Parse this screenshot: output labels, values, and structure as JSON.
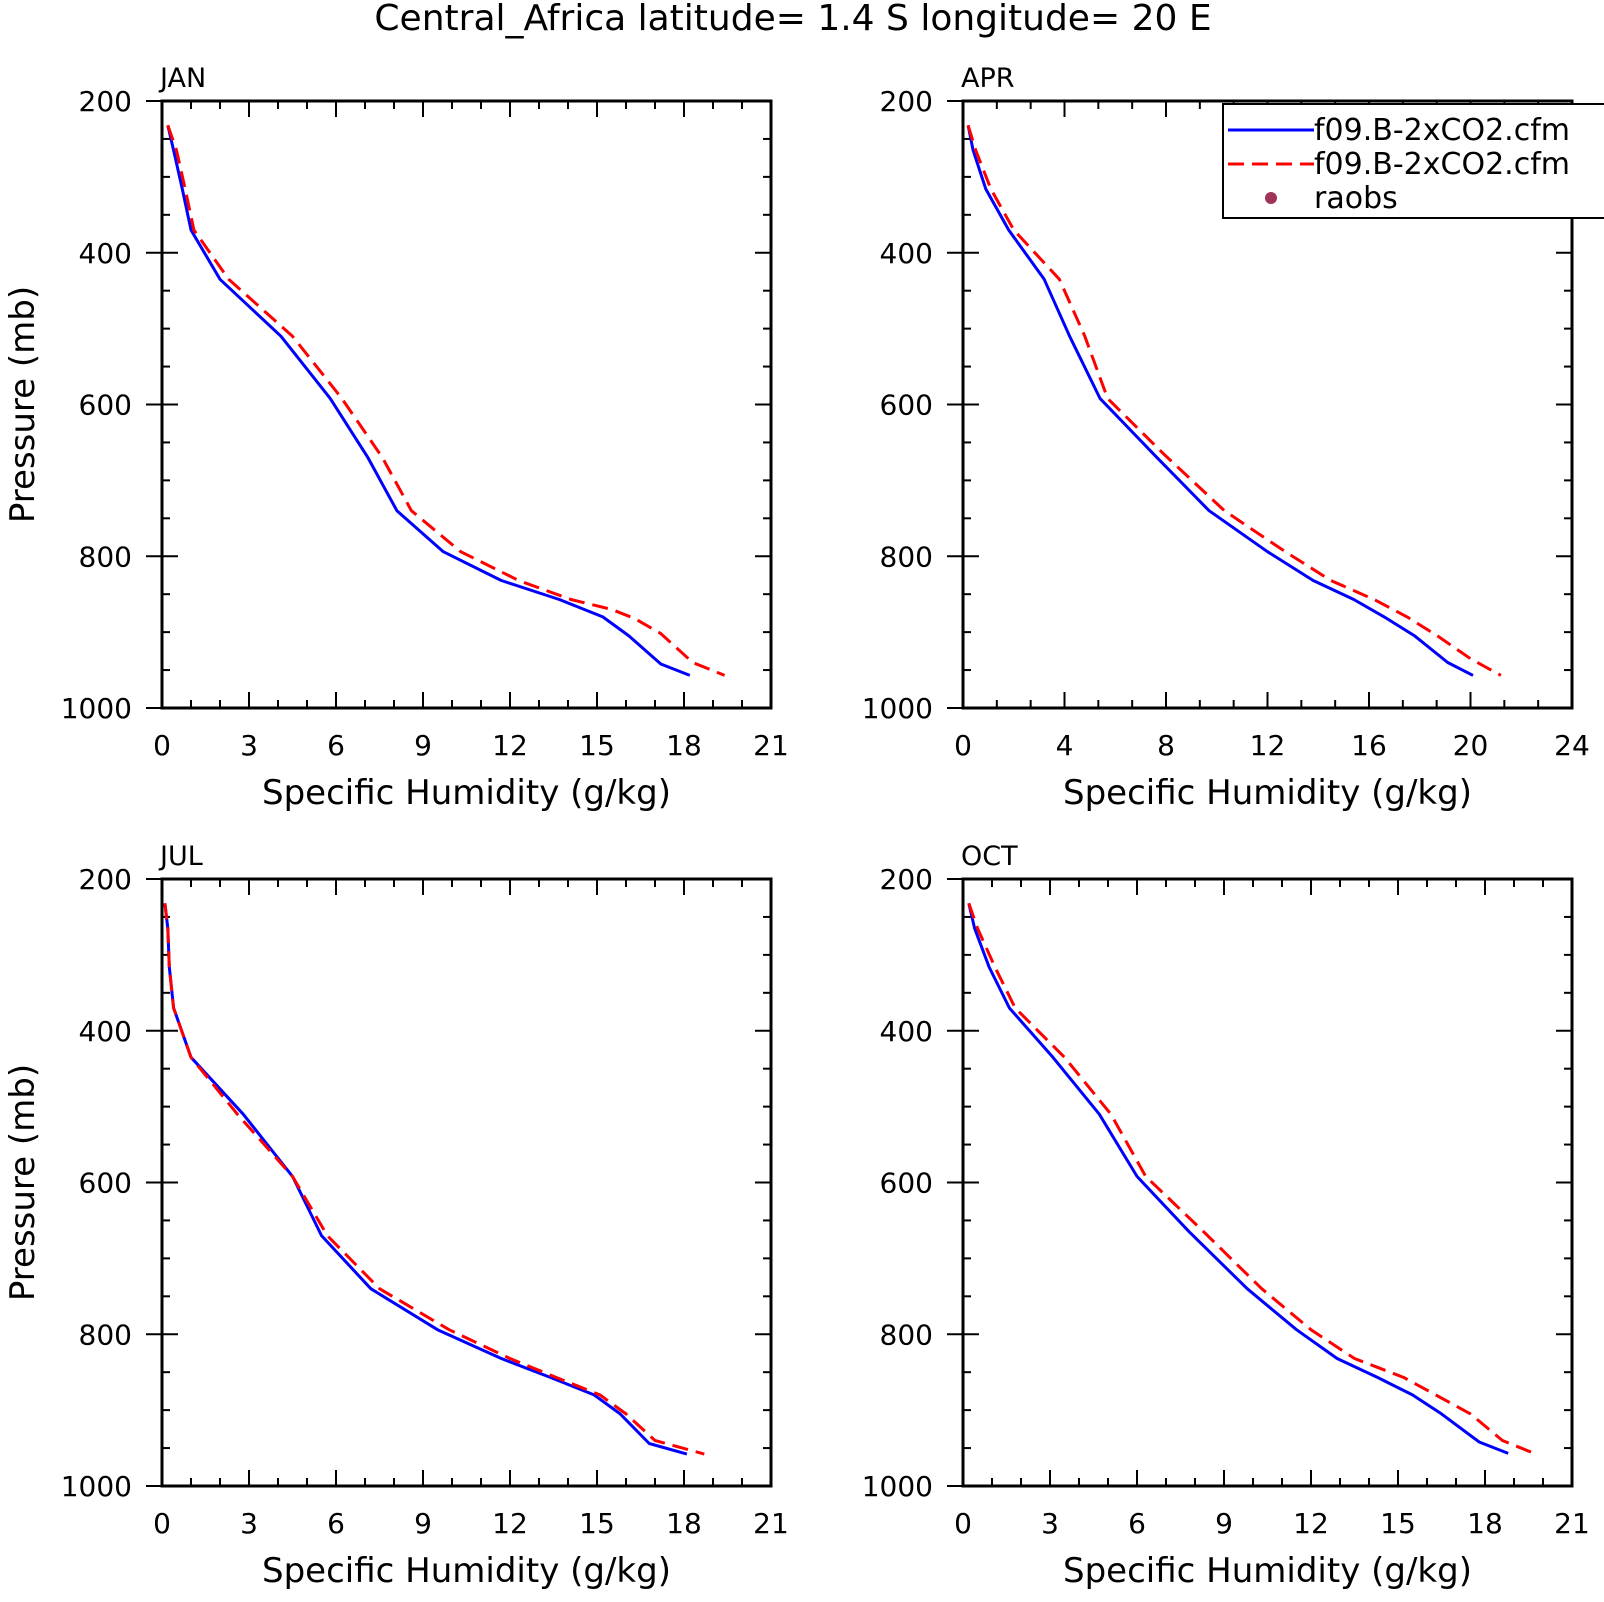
{
  "title": "Central_Africa  latitude= 1.4 S longitude= 20 E",
  "legend": {
    "entries": [
      {
        "label": "f09.B-2xCO2.cfm",
        "color": "#0000ff",
        "dash": "solid"
      },
      {
        "label": "f09.B-2xCO2.cfm",
        "color": "#ff0000",
        "dash": "dashed"
      },
      {
        "label": "raobs",
        "color": "#a0335a",
        "marker": "dot"
      }
    ]
  },
  "chart_data": [
    {
      "type": "line",
      "panel_label": "JAN",
      "xlabel": "Specific Humidity (g/kg)",
      "ylabel": "Pressure (mb)",
      "xlim": [
        0,
        21
      ],
      "ylim": [
        1000,
        200
      ],
      "xticks": [
        "0",
        "3",
        "6",
        "9",
        "12",
        "15",
        "18",
        "21"
      ],
      "yticks": [
        "200",
        "400",
        "600",
        "800",
        "1000"
      ],
      "series": [
        {
          "name": "f09.B-2xCO2.cfm",
          "color": "#0000ff",
          "dash": "solid",
          "points": [
            [
              0.2,
              232
            ],
            [
              0.4,
              265
            ],
            [
              0.7,
              316
            ],
            [
              1.0,
              370
            ],
            [
              2.0,
              435
            ],
            [
              4.1,
              510
            ],
            [
              5.8,
              592
            ],
            [
              7.1,
              670
            ],
            [
              8.1,
              740
            ],
            [
              9.7,
              794
            ],
            [
              11.7,
              832
            ],
            [
              13.7,
              857
            ],
            [
              15.2,
              880
            ],
            [
              16.1,
              905
            ],
            [
              17.2,
              942
            ],
            [
              18.2,
              957
            ]
          ]
        },
        {
          "name": "f09.B-2xCO2.cfm",
          "color": "#ff0000",
          "dash": "dashed",
          "points": [
            [
              0.2,
              232
            ],
            [
              0.5,
              265
            ],
            [
              0.8,
              316
            ],
            [
              1.1,
              370
            ],
            [
              2.3,
              435
            ],
            [
              4.5,
              510
            ],
            [
              6.2,
              592
            ],
            [
              7.6,
              670
            ],
            [
              8.6,
              740
            ],
            [
              10.3,
              794
            ],
            [
              12.3,
              832
            ],
            [
              14.1,
              857
            ],
            [
              15.5,
              870
            ],
            [
              16.3,
              882
            ],
            [
              17.2,
              902
            ],
            [
              18.3,
              940
            ],
            [
              19.4,
              957
            ]
          ]
        }
      ]
    },
    {
      "type": "line",
      "panel_label": "APR",
      "xlabel": "Specific Humidity (g/kg)",
      "ylabel": "",
      "xlim": [
        0,
        24
      ],
      "ylim": [
        1000,
        200
      ],
      "xticks": [
        "0",
        "4",
        "8",
        "12",
        "16",
        "20",
        "24"
      ],
      "yticks": [
        "200",
        "400",
        "600",
        "800",
        "1000"
      ],
      "series": [
        {
          "name": "f09.B-2xCO2.cfm",
          "color": "#0000ff",
          "dash": "solid",
          "points": [
            [
              0.2,
              232
            ],
            [
              0.4,
              265
            ],
            [
              0.9,
              316
            ],
            [
              1.8,
              370
            ],
            [
              3.2,
              435
            ],
            [
              4.2,
              510
            ],
            [
              5.4,
              592
            ],
            [
              7.5,
              665
            ],
            [
              9.7,
              740
            ],
            [
              12.0,
              794
            ],
            [
              13.8,
              832
            ],
            [
              15.4,
              857
            ],
            [
              16.6,
              880
            ],
            [
              17.8,
              905
            ],
            [
              19.1,
              940
            ],
            [
              20.1,
              957
            ]
          ]
        },
        {
          "name": "f09.B-2xCO2.cfm",
          "color": "#ff0000",
          "dash": "dashed",
          "points": [
            [
              0.2,
              232
            ],
            [
              0.5,
              265
            ],
            [
              1.1,
              316
            ],
            [
              2.0,
              370
            ],
            [
              3.8,
              435
            ],
            [
              4.8,
              510
            ],
            [
              5.7,
              592
            ],
            [
              7.9,
              665
            ],
            [
              10.3,
              740
            ],
            [
              12.7,
              794
            ],
            [
              14.5,
              832
            ],
            [
              16.2,
              857
            ],
            [
              17.5,
              880
            ],
            [
              18.7,
              905
            ],
            [
              20.0,
              935
            ],
            [
              21.2,
              957
            ]
          ]
        }
      ]
    },
    {
      "type": "line",
      "panel_label": "JUL",
      "xlabel": "Specific Humidity (g/kg)",
      "ylabel": "Pressure (mb)",
      "xlim": [
        0,
        21
      ],
      "ylim": [
        1000,
        200
      ],
      "xticks": [
        "0",
        "3",
        "6",
        "9",
        "12",
        "15",
        "18",
        "21"
      ],
      "yticks": [
        "200",
        "400",
        "600",
        "800",
        "1000"
      ],
      "series": [
        {
          "name": "f09.B-2xCO2.cfm",
          "color": "#0000ff",
          "dash": "solid",
          "points": [
            [
              0.1,
              232
            ],
            [
              0.2,
              265
            ],
            [
              0.25,
              316
            ],
            [
              0.4,
              370
            ],
            [
              1.0,
              435
            ],
            [
              2.8,
              510
            ],
            [
              4.5,
              592
            ],
            [
              5.5,
              670
            ],
            [
              7.2,
              740
            ],
            [
              9.5,
              794
            ],
            [
              11.7,
              832
            ],
            [
              13.4,
              857
            ],
            [
              14.9,
              880
            ],
            [
              15.8,
              905
            ],
            [
              16.8,
              944
            ],
            [
              18.1,
              958
            ]
          ]
        },
        {
          "name": "f09.B-2xCO2.cfm",
          "color": "#ff0000",
          "dash": "dashed",
          "points": [
            [
              0.1,
              232
            ],
            [
              0.2,
              265
            ],
            [
              0.25,
              316
            ],
            [
              0.4,
              370
            ],
            [
              1.0,
              435
            ],
            [
              2.6,
              510
            ],
            [
              4.5,
              592
            ],
            [
              5.7,
              670
            ],
            [
              7.5,
              740
            ],
            [
              9.9,
              794
            ],
            [
              12.0,
              832
            ],
            [
              13.6,
              857
            ],
            [
              15.1,
              880
            ],
            [
              16.0,
              905
            ],
            [
              17.0,
              940
            ],
            [
              18.7,
              958
            ]
          ]
        }
      ]
    },
    {
      "type": "line",
      "panel_label": "OCT",
      "xlabel": "Specific Humidity (g/kg)",
      "ylabel": "",
      "xlim": [
        0,
        21
      ],
      "ylim": [
        1000,
        200
      ],
      "xticks": [
        "0",
        "3",
        "6",
        "9",
        "12",
        "15",
        "18",
        "21"
      ],
      "yticks": [
        "200",
        "400",
        "600",
        "800",
        "1000"
      ],
      "series": [
        {
          "name": "f09.B-2xCO2.cfm",
          "color": "#0000ff",
          "dash": "solid",
          "points": [
            [
              0.2,
              232
            ],
            [
              0.4,
              265
            ],
            [
              0.9,
              316
            ],
            [
              1.6,
              370
            ],
            [
              3.1,
              435
            ],
            [
              4.7,
              510
            ],
            [
              6.0,
              592
            ],
            [
              7.8,
              665
            ],
            [
              9.8,
              740
            ],
            [
              11.5,
              794
            ],
            [
              12.9,
              832
            ],
            [
              14.3,
              857
            ],
            [
              15.5,
              880
            ],
            [
              16.5,
              905
            ],
            [
              17.8,
              942
            ],
            [
              18.8,
              957
            ]
          ]
        },
        {
          "name": "f09.B-2xCO2.cfm",
          "color": "#ff0000",
          "dash": "dashed",
          "points": [
            [
              0.2,
              232
            ],
            [
              0.5,
              265
            ],
            [
              1.1,
              316
            ],
            [
              1.8,
              370
            ],
            [
              3.5,
              435
            ],
            [
              5.1,
              510
            ],
            [
              6.3,
              592
            ],
            [
              8.3,
              665
            ],
            [
              10.3,
              740
            ],
            [
              12.0,
              794
            ],
            [
              13.5,
              832
            ],
            [
              15.2,
              857
            ],
            [
              16.4,
              882
            ],
            [
              17.5,
              905
            ],
            [
              18.6,
              940
            ],
            [
              19.7,
              957
            ]
          ]
        }
      ]
    }
  ]
}
